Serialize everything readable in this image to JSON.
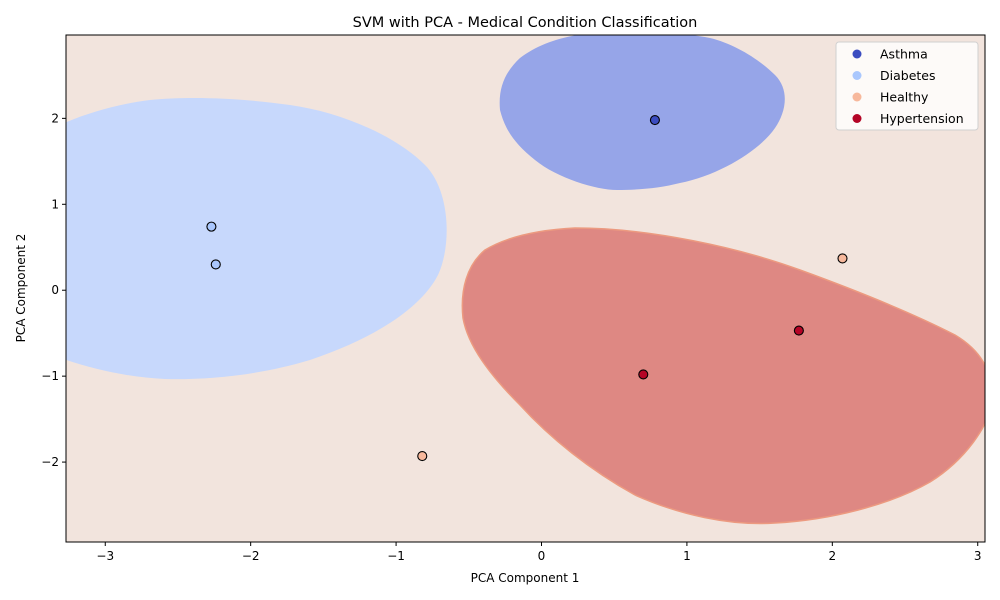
{
  "chart_data": {
    "type": "scatter",
    "title": "SVM with PCA - Medical Condition Classification",
    "xlabel": "PCA Component 1",
    "ylabel": "PCA Component 2",
    "xlim": [
      -3.27,
      3.05
    ],
    "ylim": [
      -2.93,
      2.97
    ],
    "xticks": [
      -3,
      -2,
      -1,
      0,
      1,
      2,
      3
    ],
    "yticks": [
      -2,
      -1,
      0,
      1,
      2
    ],
    "grid": false,
    "legend_position": "top-right",
    "background_region_color": "#f2e4dd",
    "classes": [
      {
        "name": "Asthma",
        "color": "#3b4cc0",
        "region_color": "#96a5e8"
      },
      {
        "name": "Diabetes",
        "color": "#aac7fd",
        "region_color": "#c7d8fc"
      },
      {
        "name": "Healthy",
        "color": "#f7b89c",
        "region_color": "#f2e4dd"
      },
      {
        "name": "Hypertension",
        "color": "#b40426",
        "region_color": "#de8883"
      }
    ],
    "points": [
      {
        "x": 0.78,
        "y": 1.98,
        "class": "Asthma"
      },
      {
        "x": -2.27,
        "y": 0.74,
        "class": "Diabetes"
      },
      {
        "x": -2.24,
        "y": 0.3,
        "class": "Diabetes"
      },
      {
        "x": 2.07,
        "y": 0.37,
        "class": "Healthy"
      },
      {
        "x": -0.82,
        "y": -1.93,
        "class": "Healthy"
      },
      {
        "x": 1.77,
        "y": -0.47,
        "class": "Hypertension"
      },
      {
        "x": 0.7,
        "y": -0.98,
        "class": "Hypertension"
      }
    ]
  }
}
